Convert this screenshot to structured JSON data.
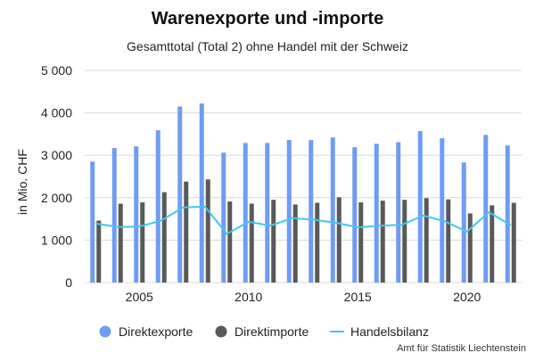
{
  "chart_data": {
    "type": "bar",
    "title": "Warenexporte und -importe",
    "subtitle": "Gesamttotal (Total 2) ohne Handel mit der Schweiz",
    "ylabel": "in Mio. CHF",
    "xlabel": "",
    "x": [
      2003,
      2004,
      2005,
      2006,
      2007,
      2008,
      2009,
      2010,
      2011,
      2012,
      2013,
      2014,
      2015,
      2016,
      2017,
      2018,
      2019,
      2020,
      2021,
      2022
    ],
    "ylim": [
      0,
      5000
    ],
    "yticks": [
      0,
      1000,
      2000,
      3000,
      4000,
      5000
    ],
    "ytick_labels": [
      "0",
      "1 000",
      "2 000",
      "3 000",
      "4 000",
      "5 000"
    ],
    "xticks": [
      2005,
      2010,
      2015,
      2020
    ],
    "xtick_labels": [
      "2005",
      "2010",
      "2015",
      "2020"
    ],
    "grid": "horizontal",
    "legend_position": "bottom",
    "series": [
      {
        "name": "Direktexporte",
        "kind": "bar",
        "color": "#6f9cf3",
        "values": [
          2850,
          3170,
          3210,
          3590,
          4150,
          4220,
          3060,
          3290,
          3290,
          3360,
          3360,
          3420,
          3190,
          3270,
          3310,
          3570,
          3400,
          2830,
          3480,
          3230
        ]
      },
      {
        "name": "Direktimporte",
        "kind": "bar",
        "color": "#595959",
        "values": [
          1460,
          1860,
          1890,
          2130,
          2380,
          2430,
          1910,
          1860,
          1950,
          1840,
          1880,
          2010,
          1890,
          1930,
          1950,
          1990,
          1960,
          1630,
          1820,
          1880
        ]
      },
      {
        "name": "Handelsbilanz",
        "kind": "line",
        "color": "#45c6ec",
        "values": [
          1390,
          1310,
          1320,
          1460,
          1770,
          1790,
          1150,
          1430,
          1340,
          1520,
          1480,
          1410,
          1300,
          1340,
          1360,
          1580,
          1440,
          1200,
          1660,
          1350
        ]
      }
    ],
    "source": "Amt für Statistik Liechtenstein"
  }
}
